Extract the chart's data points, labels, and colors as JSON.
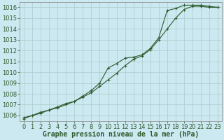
{
  "background_color": "#cce8f0",
  "grid_color": "#aacccc",
  "line_color": "#2d5a2d",
  "marker_color": "#2d5a2d",
  "xlabel": "Graphe pression niveau de la mer (hPa)",
  "xlabel_fontsize": 7,
  "tick_fontsize": 6,
  "xlim": [
    -0.5,
    23.5
  ],
  "ylim": [
    1005.5,
    1016.5
  ],
  "yticks": [
    1006,
    1007,
    1008,
    1009,
    1010,
    1011,
    1012,
    1013,
    1014,
    1015,
    1016
  ],
  "xticks": [
    0,
    1,
    2,
    3,
    4,
    5,
    6,
    7,
    8,
    9,
    10,
    11,
    12,
    13,
    14,
    15,
    16,
    17,
    18,
    19,
    20,
    21,
    22,
    23
  ],
  "series1_x": [
    0,
    1,
    2,
    3,
    4,
    5,
    6,
    7,
    8,
    9,
    10,
    11,
    12,
    13,
    14,
    15,
    16,
    17,
    18,
    19,
    20,
    21,
    22,
    23
  ],
  "series1_y": [
    1005.8,
    1006.0,
    1006.2,
    1006.5,
    1006.7,
    1007.0,
    1007.3,
    1007.7,
    1008.1,
    1008.7,
    1009.3,
    1009.9,
    1010.6,
    1011.2,
    1011.5,
    1012.1,
    1013.0,
    1014.0,
    1015.0,
    1015.8,
    1016.1,
    1016.1,
    1016.0,
    1016.0
  ],
  "series2_x": [
    0,
    1,
    2,
    3,
    4,
    5,
    6,
    7,
    8,
    9,
    10,
    11,
    12,
    13,
    14,
    15,
    16,
    17,
    18,
    19,
    20,
    21,
    22,
    23
  ],
  "series2_y": [
    1005.7,
    1006.0,
    1006.3,
    1006.5,
    1006.8,
    1007.1,
    1007.3,
    1007.8,
    1008.3,
    1009.0,
    1010.4,
    1010.8,
    1011.3,
    1011.4,
    1011.6,
    1012.2,
    1013.2,
    1015.7,
    1015.9,
    1016.2,
    1016.2,
    1016.2,
    1016.1,
    1016.0
  ]
}
